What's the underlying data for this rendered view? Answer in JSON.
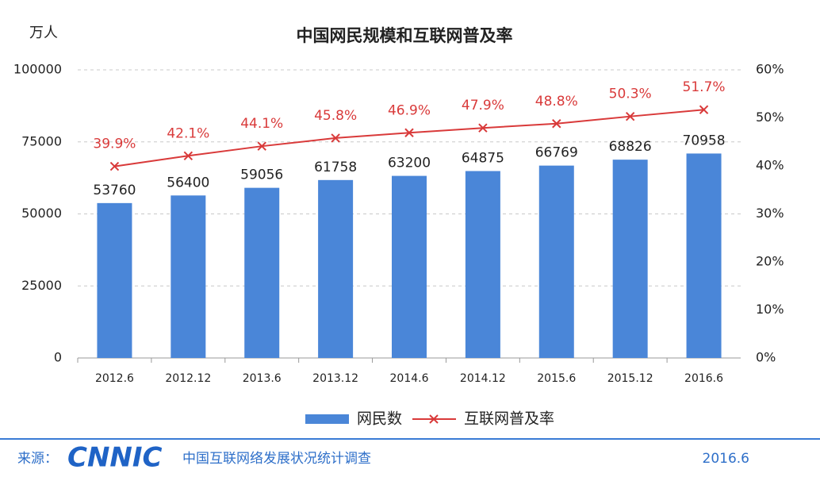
{
  "chart_data": {
    "type": "bar",
    "title": "中国网民规模和互联网普及率",
    "y_label": "万人",
    "categories": [
      "2012.6",
      "2012.12",
      "2013.6",
      "2013.12",
      "2014.6",
      "2014.12",
      "2015.6",
      "2015.12",
      "2016.6"
    ],
    "series": [
      {
        "name": "网民数",
        "type": "bar",
        "color": "#4a86d8",
        "values": [
          53760,
          56400,
          59056,
          61758,
          63200,
          64875,
          66769,
          68826,
          70958
        ]
      },
      {
        "name": "互联网普及率",
        "type": "line",
        "axis": "y2",
        "color": "#d93a3a",
        "values": [
          39.9,
          42.1,
          44.1,
          45.8,
          46.9,
          47.9,
          48.8,
          50.3,
          51.7
        ],
        "value_labels": [
          "39.9%",
          "42.1%",
          "44.1%",
          "45.8%",
          "46.9%",
          "47.9%",
          "48.8%",
          "50.3%",
          "51.7%"
        ]
      }
    ],
    "ylim": [
      0,
      100000
    ],
    "yticks": [
      0,
      25000,
      50000,
      75000,
      100000
    ],
    "y2lim": [
      0,
      60
    ],
    "y2ticks": [
      {
        "value": 0,
        "label": "0%"
      },
      {
        "value": 10,
        "label": "10%"
      },
      {
        "value": 20,
        "label": "20%"
      },
      {
        "value": 30,
        "label": "30%"
      },
      {
        "value": 40,
        "label": "40%"
      },
      {
        "value": 50,
        "label": "50%"
      },
      {
        "value": 60,
        "label": "60%"
      }
    ],
    "grid": true,
    "legend": "bottom"
  },
  "footer": {
    "source_label": "来源：",
    "logo": "CNNIC",
    "survey": "中国互联网络发展状况统计调查",
    "date": "2016.6"
  }
}
